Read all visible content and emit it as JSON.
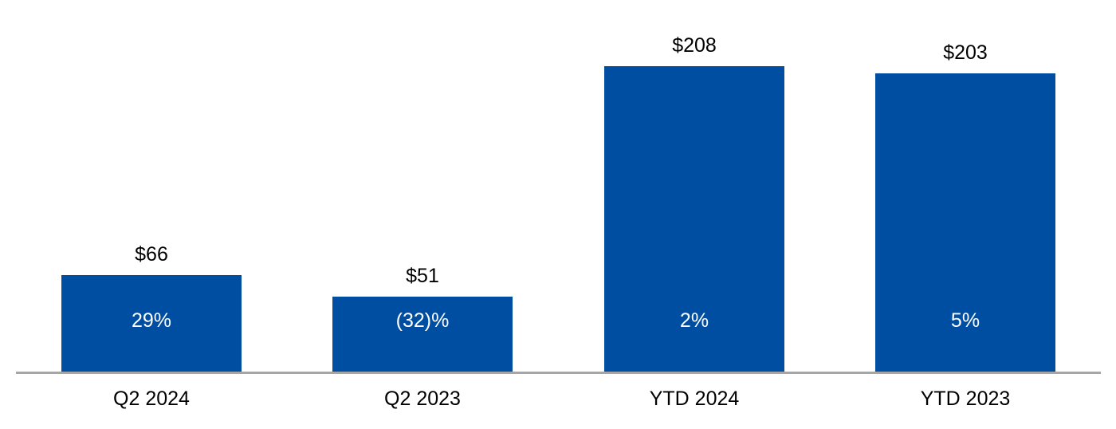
{
  "chart_data": {
    "type": "bar",
    "title": "",
    "categories": [
      "Q2 2024",
      "Q2 2023",
      "YTD 2024",
      "YTD 2023"
    ],
    "values": [
      66,
      51,
      208,
      203
    ],
    "value_labels": [
      "$66",
      "$51",
      "$208",
      "$203"
    ],
    "percent_labels": [
      "29%",
      "(32)%",
      "2%",
      "5%"
    ],
    "ylim": [
      0,
      230
    ],
    "grid": false,
    "legend": "none",
    "bar_color": "#004EA2",
    "axis_line_color": "#A6A6A6",
    "value_label_color": "#000000",
    "percent_label_color": "#FFFFFF"
  }
}
